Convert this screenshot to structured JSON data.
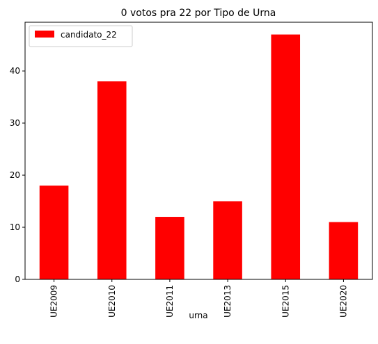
{
  "chart_data": {
    "type": "bar",
    "title": "0 votos pra 22 por Tipo de Urna",
    "xlabel": "urna",
    "ylabel": "",
    "categories": [
      "UE2009",
      "UE2010",
      "UE2011",
      "UE2013",
      "UE2015",
      "UE2020"
    ],
    "series": [
      {
        "name": "candidato_22",
        "values": [
          18,
          38,
          12,
          15,
          47,
          11
        ],
        "color": "#ff0000"
      }
    ],
    "ylim": [
      0,
      49.35
    ],
    "yticks": [
      0,
      10,
      20,
      30,
      40
    ],
    "legend": {
      "position": "top-left"
    },
    "grid": false
  }
}
